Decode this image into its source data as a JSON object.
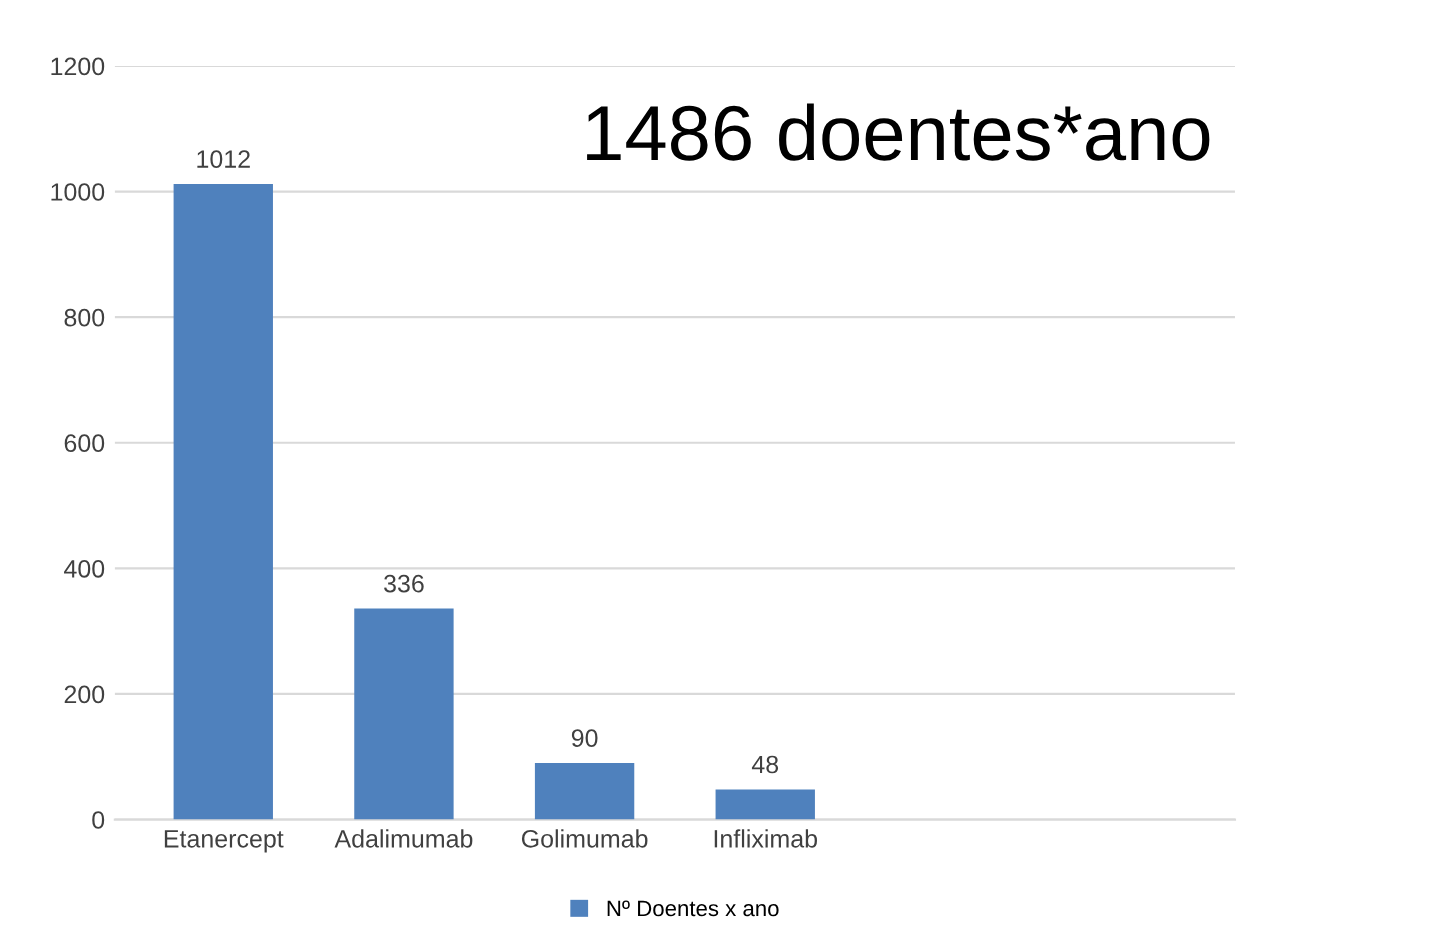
{
  "chart_data": {
    "type": "bar",
    "annotations": [
      "1486 doentes*ano"
    ],
    "categories": [
      "Etanercept",
      "Adalimumab",
      "Golimumab",
      "Infliximab"
    ],
    "series": [
      {
        "name": "Nº Doentes x ano",
        "color": "#4f81bd",
        "values": [
          1012,
          336,
          90,
          48
        ]
      }
    ],
    "ylim": [
      0,
      1200
    ],
    "yticks": [
      0,
      200,
      400,
      600,
      800,
      1000,
      1200
    ],
    "grid": "y",
    "legend": "bottom",
    "data_labels": true
  }
}
